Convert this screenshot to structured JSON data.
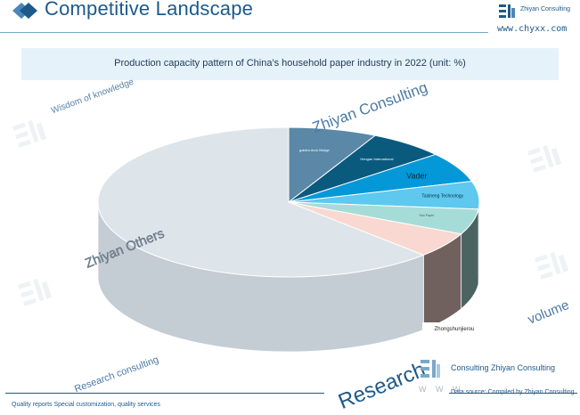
{
  "header": {
    "title": "Competitive Landscape",
    "brand_name": "Zhiyan Consulting",
    "url": "www.chyxx.com"
  },
  "watermarks": {
    "wisdom": "Wisdom of knowledge",
    "zhiyan": "Zhiyan Consulting",
    "research_consulting": "Research consulting",
    "volume": "volume",
    "research": "Research",
    "www": "W W W"
  },
  "footer": {
    "left": "Quality reports Special customization, quality services",
    "right_brand": "Consulting Zhiyan Consulting",
    "source": "Data source: Compiled by Zhiyan Consulting"
  },
  "chart_data": {
    "type": "pie",
    "title": "Production capacity pattern of China's household paper industry in 2022 (unit: %)",
    "slices": [
      {
        "label": "golden Arch Bridge",
        "value": 7.5,
        "color": "#5a88a6"
      },
      {
        "label": "Hengan International",
        "value": 6.5,
        "color": "#0a5a7e"
      },
      {
        "label": "Vader",
        "value": 6.5,
        "color": "#0598d8"
      },
      {
        "label": "Taisheng Technology",
        "value": 6.0,
        "color": "#5ec8ee"
      },
      {
        "label": "Sun Paper",
        "value": 5.5,
        "color": "#a6dcd8"
      },
      {
        "label": "Zhongshunjierou",
        "value": 5.5,
        "color": "#f8d8d0"
      },
      {
        "label": "Zhiyan Others",
        "value": 62.5,
        "color": "#dde4ea"
      }
    ]
  }
}
